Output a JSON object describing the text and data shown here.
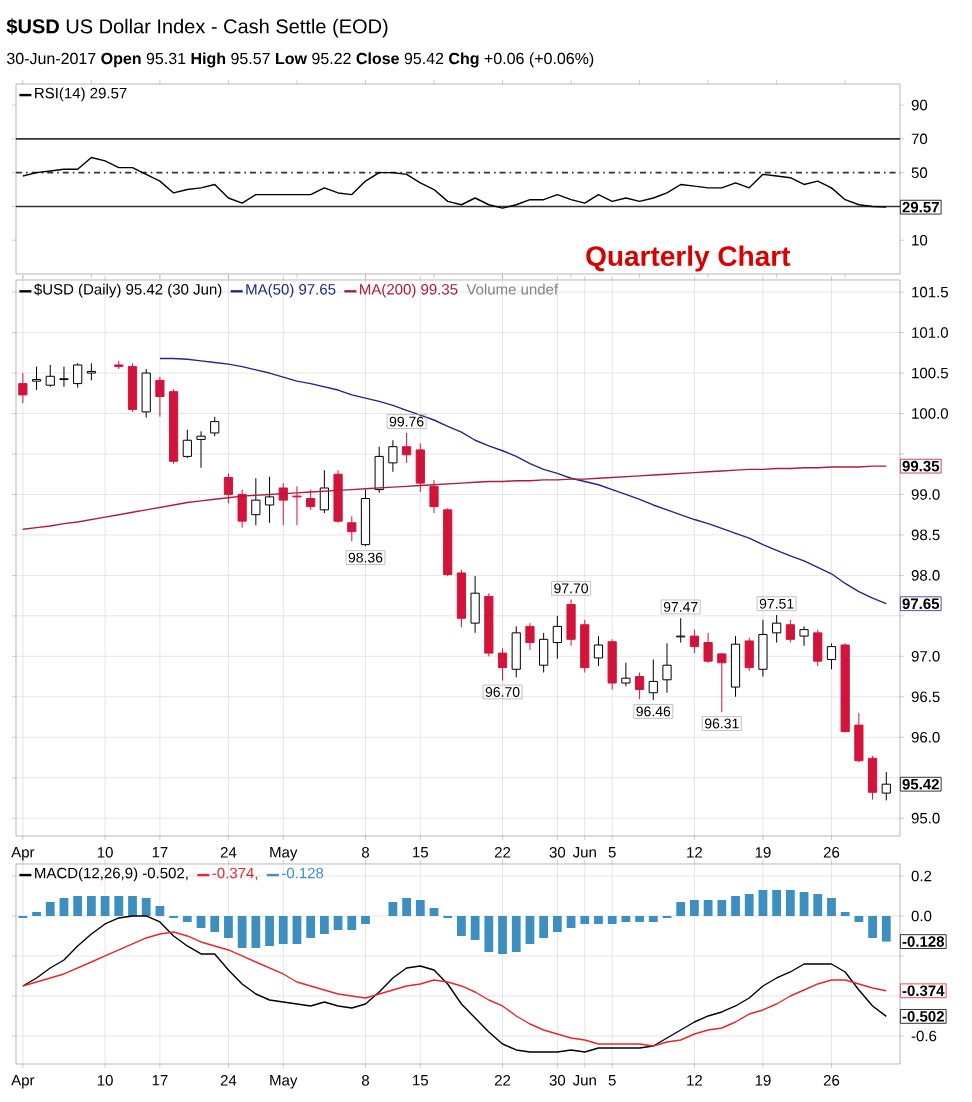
{
  "chart_data": [
    {
      "type": "line",
      "title": "**$USD** US Dollar Index - Cash Settle (EOD)",
      "subtitle": "30-Jun-2017     **Open** 95.31  **High** 95.57  **Low** 95.22  **Close** 95.42  **Chg** +0.06 (+0.06%)",
      "categories": [
        null,
        null,
        null,
        null,
        null,
        null,
        null,
        null,
        null,
        null,
        null,
        null,
        null,
        null,
        null,
        null,
        null,
        null,
        null,
        null,
        null,
        null,
        null,
        null,
        null,
        null,
        null,
        null,
        null,
        null,
        null,
        null,
        null,
        null,
        null,
        null,
        null,
        null,
        null,
        null,
        null,
        null,
        null,
        null,
        null,
        null,
        null,
        null,
        null,
        null,
        null,
        null,
        null,
        null,
        null,
        null,
        null,
        null,
        null,
        null,
        null,
        null,
        null,
        null
      ],
      "ylim": [
        -10,
        102.5
      ],
      "yticks": [
        10,
        {
          "value": 30,
          "label": null
        },
        50,
        70,
        90
      ],
      "legend": "top left",
      "series": [
        {
          "name": "RSI(14) 29.57",
          "color": "#000000",
          "values": [
            48,
            50,
            51,
            52,
            52,
            59,
            57,
            53,
            53,
            49,
            45,
            38,
            40,
            41,
            43,
            35,
            32,
            37,
            37,
            37,
            37,
            37,
            41,
            38,
            37,
            45,
            50,
            50,
            49,
            44,
            40,
            33,
            31,
            35,
            31,
            29,
            31,
            34,
            34,
            37,
            34,
            32,
            37,
            33,
            35,
            33,
            35,
            38,
            43,
            42,
            41,
            41,
            44,
            41,
            49,
            48,
            47,
            43,
            45,
            41,
            34,
            31,
            30,
            29.57
          ]
        }
      ],
      "ref_lines": [
        {
          "axis": "y",
          "value": 70,
          "color": "#333333"
        },
        {
          "axis": "y",
          "value": 50,
          "color": "#333333",
          "line_style": "dashed"
        },
        {
          "axis": "y",
          "value": 30,
          "color": "#333333"
        }
      ],
      "annotations": [
        "Quarterly Chart",
        {
          "text": "29.57",
          "y": 29.57
        }
      ]
    },
    {
      "type": "candlestick",
      "categories": [
        "Apr",
        null,
        null,
        null,
        null,
        null,
        "10",
        null,
        null,
        null,
        "17",
        null,
        null,
        null,
        null,
        "24",
        null,
        null,
        null,
        "May",
        null,
        null,
        null,
        null,
        null,
        "8",
        null,
        null,
        null,
        "15",
        null,
        null,
        null,
        null,
        null,
        "22",
        null,
        null,
        null,
        "30",
        null,
        "Jun",
        null,
        "5",
        null,
        null,
        null,
        null,
        null,
        "12",
        null,
        null,
        null,
        null,
        "19",
        null,
        null,
        null,
        null,
        "26",
        null,
        null,
        null,
        null
      ],
      "ylim": [
        94.78,
        101.65
      ],
      "yticks": [
        {
          "value": 95,
          "label": "95.0"
        },
        {
          "value": 95.5,
          "label": null
        },
        {
          "value": 96,
          "label": "96.0"
        },
        {
          "value": 96.5,
          "label": "96.5"
        },
        {
          "value": 97,
          "label": "97.0"
        },
        {
          "value": 97.5,
          "label": null
        },
        {
          "value": 98,
          "label": "98.0"
        },
        {
          "value": 98.5,
          "label": "98.5"
        },
        {
          "value": 99,
          "label": "99.0"
        },
        {
          "value": 99.5,
          "label": null
        },
        {
          "value": 100,
          "label": "100.0"
        },
        {
          "value": 100.5,
          "label": "100.5"
        },
        {
          "value": 101,
          "label": "101.0"
        },
        {
          "value": 101.5,
          "label": "101.5"
        }
      ],
      "grid": true,
      "legend": "top left",
      "series": [
        {
          "type": "candlestick",
          "name": "$USD (Daily) 95.42 (30 Jun)",
          "ohlc": [
            [
              100.37,
              100.5,
              100.13,
              100.23
            ],
            [
              100.4,
              100.58,
              100.29,
              100.42
            ],
            [
              100.35,
              100.6,
              100.33,
              100.46
            ],
            [
              100.42,
              100.58,
              100.33,
              100.43
            ],
            [
              100.37,
              100.62,
              100.32,
              100.6
            ],
            [
              100.5,
              100.62,
              100.41,
              100.52
            ],
            null,
            [
              100.6,
              100.65,
              100.55,
              100.58
            ],
            [
              100.58,
              100.62,
              100.02,
              100.05
            ],
            [
              100.02,
              100.55,
              99.95,
              100.5
            ],
            [
              100.41,
              100.45,
              99.96,
              100.21
            ],
            [
              100.27,
              100.3,
              99.38,
              99.41
            ],
            [
              99.47,
              99.8,
              99.45,
              99.67
            ],
            [
              99.68,
              99.78,
              99.33,
              99.72
            ],
            [
              99.76,
              99.96,
              99.72,
              99.9
            ],
            [
              99.21,
              99.26,
              98.89,
              99.0
            ],
            [
              99.0,
              99.06,
              98.59,
              98.67
            ],
            [
              98.75,
              99.2,
              98.62,
              98.93
            ],
            [
              98.87,
              99.22,
              98.65,
              98.97
            ],
            [
              99.08,
              99.14,
              98.62,
              98.93
            ],
            [
              98.98,
              99.1,
              98.62,
              98.97
            ],
            [
              98.95,
              99.06,
              98.81,
              98.85
            ],
            [
              98.81,
              99.3,
              98.77,
              99.08
            ],
            [
              99.25,
              99.3,
              98.65,
              98.67
            ],
            [
              98.65,
              98.73,
              98.42,
              98.54
            ],
            [
              98.38,
              99.06,
              98.36,
              98.95
            ],
            [
              99.06,
              99.59,
              99.02,
              99.47
            ],
            [
              99.39,
              99.67,
              99.28,
              99.59
            ],
            [
              99.59,
              99.76,
              99.39,
              99.49
            ],
            [
              99.55,
              99.63,
              99.03,
              99.14
            ],
            [
              99.1,
              99.18,
              98.77,
              98.85
            ],
            [
              98.81,
              98.83,
              97.99,
              98.01
            ],
            [
              98.03,
              98.07,
              97.36,
              97.47
            ],
            [
              97.41,
              97.99,
              97.29,
              97.78
            ],
            [
              97.74,
              97.78,
              97.0,
              97.04
            ],
            [
              97.04,
              97.1,
              96.7,
              96.86
            ],
            [
              96.84,
              97.37,
              96.74,
              97.29
            ],
            [
              97.37,
              97.41,
              97.08,
              97.17
            ],
            [
              96.89,
              97.29,
              96.8,
              97.21
            ],
            [
              97.17,
              97.5,
              96.97,
              97.37
            ],
            [
              97.64,
              97.7,
              97.13,
              97.21
            ],
            [
              97.39,
              97.45,
              96.8,
              96.86
            ],
            [
              96.98,
              97.25,
              96.88,
              97.14
            ],
            [
              97.18,
              97.21,
              96.59,
              96.67
            ],
            [
              96.67,
              96.92,
              96.63,
              96.73
            ],
            [
              96.75,
              96.8,
              96.47,
              96.59
            ],
            [
              96.55,
              96.96,
              96.46,
              96.69
            ],
            [
              96.71,
              97.16,
              96.55,
              96.89
            ],
            [
              97.24,
              97.47,
              97.17,
              97.25
            ],
            [
              97.25,
              97.33,
              97.04,
              97.12
            ],
            [
              97.17,
              97.29,
              96.92,
              96.94
            ],
            [
              97.03,
              97.04,
              96.31,
              96.92
            ],
            [
              96.62,
              97.25,
              96.5,
              97.15
            ],
            [
              97.19,
              97.23,
              96.82,
              96.86
            ],
            [
              96.84,
              97.45,
              96.75,
              97.27
            ],
            [
              97.29,
              97.51,
              97.17,
              97.41
            ],
            [
              97.39,
              97.45,
              97.17,
              97.21
            ],
            [
              97.25,
              97.37,
              97.13,
              97.33
            ],
            [
              97.29,
              97.33,
              96.88,
              96.94
            ],
            [
              96.96,
              97.16,
              96.84,
              97.12
            ],
            [
              97.14,
              97.16,
              96.06,
              96.07
            ],
            [
              96.15,
              96.3,
              95.69,
              95.71
            ],
            [
              95.74,
              95.77,
              95.23,
              95.32
            ],
            [
              95.31,
              95.57,
              95.22,
              95.42
            ]
          ],
          "colors": [
            "#d2143a",
            "#ffffff",
            "#ffffff",
            "#ffffff",
            "#ffffff",
            "#ffffff",
            null,
            "#d2143a",
            "#d2143a",
            "#ffffff",
            "#d2143a",
            "#d2143a",
            "#ffffff",
            "#ffffff",
            "#ffffff",
            "#d2143a",
            "#d2143a",
            "#ffffff",
            "#ffffff",
            "#d2143a",
            "#d2143a",
            "#d2143a",
            "#ffffff",
            "#d2143a",
            "#d2143a",
            "#ffffff",
            "#ffffff",
            "#ffffff",
            "#d2143a",
            "#d2143a",
            "#d2143a",
            "#d2143a",
            "#d2143a",
            "#ffffff",
            "#d2143a",
            "#d2143a",
            "#ffffff",
            "#d2143a",
            "#ffffff",
            "#ffffff",
            "#d2143a",
            "#d2143a",
            "#ffffff",
            "#d2143a",
            "#ffffff",
            "#d2143a",
            "#ffffff",
            "#ffffff",
            "#ffffff",
            "#d2143a",
            "#d2143a",
            "#d2143a",
            "#ffffff",
            "#d2143a",
            "#ffffff",
            "#ffffff",
            "#d2143a",
            "#ffffff",
            "#d2143a",
            "#ffffff",
            "#d2143a",
            "#d2143a",
            "#d2143a",
            "#ffffff"
          ]
        },
        {
          "type": "line",
          "name": "MA(50) 97.65",
          "color": "#1f2a80",
          "values": [
            null,
            null,
            null,
            null,
            null,
            null,
            null,
            null,
            null,
            null,
            100.68,
            100.68,
            100.67,
            100.65,
            100.63,
            100.61,
            100.58,
            100.54,
            100.5,
            100.45,
            100.4,
            100.37,
            100.33,
            100.29,
            100.23,
            100.19,
            100.15,
            100.1,
            100.04,
            99.98,
            99.92,
            99.84,
            99.77,
            99.67,
            99.6,
            99.54,
            99.47,
            99.38,
            99.31,
            99.26,
            99.2,
            99.16,
            99.12,
            99.06,
            99.0,
            98.94,
            98.87,
            98.81,
            98.75,
            98.69,
            98.64,
            98.58,
            98.52,
            98.46,
            98.38,
            98.31,
            98.24,
            98.18,
            98.1,
            98.02,
            97.9,
            97.8,
            97.72,
            97.65
          ]
        },
        {
          "type": "line",
          "name": "MA(200) 99.35",
          "color": "#b01c35",
          "values": [
            98.57,
            98.59,
            98.61,
            98.64,
            98.66,
            98.69,
            98.72,
            98.75,
            98.78,
            98.81,
            98.84,
            98.87,
            98.9,
            98.92,
            98.94,
            98.96,
            98.98,
            98.99,
            99.0,
            99.01,
            99.02,
            99.03,
            99.04,
            99.05,
            99.06,
            99.07,
            99.08,
            99.09,
            99.1,
            99.11,
            99.12,
            99.13,
            99.14,
            99.15,
            99.16,
            99.16,
            99.17,
            99.17,
            99.18,
            99.18,
            99.19,
            99.19,
            99.2,
            99.21,
            99.22,
            99.23,
            99.24,
            99.25,
            99.26,
            99.27,
            99.28,
            99.29,
            99.3,
            99.31,
            99.31,
            99.32,
            99.32,
            99.33,
            99.33,
            99.34,
            99.34,
            99.34,
            99.35,
            99.35
          ]
        }
      ],
      "annotations": [
        "Volume undef",
        {
          "text": "99.76",
          "y": 99.76
        },
        {
          "text": "98.36",
          "y": 98.36
        },
        {
          "text": "97.70",
          "y": 97.7
        },
        {
          "text": "96.70",
          "y": 96.7
        },
        {
          "text": "96.46",
          "y": 96.46
        },
        {
          "text": "97.47",
          "y": 97.47
        },
        {
          "text": "96.31",
          "y": 96.31
        },
        {
          "text": "97.51",
          "y": 97.51
        },
        {
          "text": "99.35",
          "y": 99.35
        },
        {
          "text": "97.65",
          "y": 97.65
        },
        {
          "text": "95.42",
          "y": 95.42
        }
      ]
    },
    {
      "type": "line",
      "categories": [
        "Apr",
        null,
        null,
        null,
        null,
        null,
        "10",
        null,
        null,
        null,
        "17",
        null,
        null,
        null,
        null,
        "24",
        null,
        null,
        null,
        "May",
        null,
        null,
        null,
        null,
        null,
        "8",
        null,
        null,
        null,
        "15",
        null,
        null,
        null,
        null,
        null,
        "22",
        null,
        null,
        null,
        "30",
        null,
        "Jun",
        null,
        "5",
        null,
        null,
        null,
        null,
        null,
        "12",
        null,
        null,
        null,
        null,
        "19",
        null,
        null,
        null,
        null,
        "26",
        null,
        null,
        null,
        null
      ],
      "ylim": [
        -0.74,
        0.26
      ],
      "yticks": [
        {
          "value": 0.2,
          "label": "0.2"
        },
        {
          "value": 0,
          "label": "0.0"
        },
        {
          "value": -0.2,
          "label": null
        },
        {
          "value": -0.4,
          "label": null
        },
        {
          "value": -0.6,
          "label": "-0.6"
        }
      ],
      "grid": true,
      "legend": "top left",
      "series": [
        {
          "name": "MACD(12,26,9) -0.502,",
          "color": "#000000",
          "values": [
            -0.35,
            -0.31,
            -0.26,
            -0.22,
            -0.15,
            -0.09,
            -0.04,
            -0.01,
            0.0,
            0.0,
            -0.03,
            -0.1,
            -0.15,
            -0.19,
            -0.19,
            -0.27,
            -0.34,
            -0.39,
            -0.42,
            -0.43,
            -0.44,
            -0.45,
            -0.43,
            -0.45,
            -0.46,
            -0.44,
            -0.38,
            -0.31,
            -0.26,
            -0.25,
            -0.27,
            -0.34,
            -0.44,
            -0.51,
            -0.58,
            -0.64,
            -0.67,
            -0.68,
            -0.68,
            -0.68,
            -0.67,
            -0.68,
            -0.66,
            -0.66,
            -0.66,
            -0.66,
            -0.65,
            -0.61,
            -0.57,
            -0.53,
            -0.5,
            -0.48,
            -0.45,
            -0.41,
            -0.35,
            -0.31,
            -0.28,
            -0.24,
            -0.24,
            -0.24,
            -0.28,
            -0.37,
            -0.45,
            -0.502
          ]
        },
        {
          "name": "-0.374,",
          "color": "#e8262a",
          "values": [
            -0.35,
            -0.33,
            -0.31,
            -0.29,
            -0.26,
            -0.23,
            -0.2,
            -0.17,
            -0.14,
            -0.11,
            -0.09,
            -0.08,
            -0.1,
            -0.13,
            -0.15,
            -0.17,
            -0.2,
            -0.23,
            -0.26,
            -0.29,
            -0.33,
            -0.35,
            -0.37,
            -0.39,
            -0.4,
            -0.41,
            -0.39,
            -0.37,
            -0.35,
            -0.34,
            -0.32,
            -0.33,
            -0.35,
            -0.38,
            -0.42,
            -0.45,
            -0.5,
            -0.54,
            -0.57,
            -0.59,
            -0.61,
            -0.62,
            -0.64,
            -0.64,
            -0.64,
            -0.64,
            -0.65,
            -0.63,
            -0.62,
            -0.59,
            -0.57,
            -0.56,
            -0.53,
            -0.49,
            -0.47,
            -0.44,
            -0.4,
            -0.37,
            -0.34,
            -0.32,
            -0.32,
            -0.34,
            -0.36,
            -0.374
          ]
        },
        {
          "type": "bar",
          "name": "-0.128",
          "color": "#3d8fc0",
          "values": [
            -0.01,
            0.02,
            0.07,
            0.09,
            0.1,
            0.1,
            0.1,
            0.1,
            0.1,
            0.09,
            0.05,
            -0.01,
            -0.03,
            -0.06,
            -0.08,
            -0.11,
            -0.16,
            -0.16,
            -0.15,
            -0.14,
            -0.14,
            -0.11,
            -0.09,
            -0.07,
            -0.07,
            -0.04,
            0.0,
            0.07,
            0.09,
            0.08,
            0.04,
            -0.01,
            -0.1,
            -0.12,
            -0.18,
            -0.19,
            -0.18,
            -0.14,
            -0.11,
            -0.08,
            -0.06,
            -0.04,
            -0.04,
            -0.04,
            -0.03,
            -0.03,
            -0.03,
            -0.01,
            0.07,
            0.08,
            0.08,
            0.08,
            0.1,
            0.11,
            0.13,
            0.13,
            0.13,
            0.12,
            0.11,
            0.09,
            0.02,
            -0.03,
            -0.11,
            -0.128
          ]
        }
      ],
      "annotations": [
        {
          "text": "-0.128",
          "y": -0.128
        },
        {
          "text": "-0.374",
          "y": -0.374
        },
        {
          "text": "-0.502",
          "y": -0.502
        }
      ]
    }
  ]
}
